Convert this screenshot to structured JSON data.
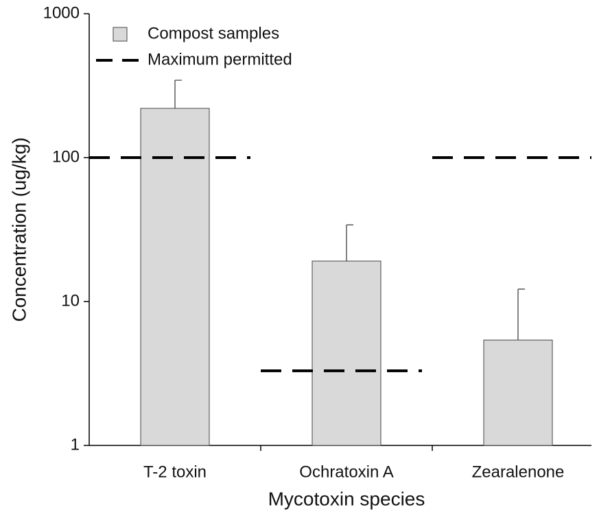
{
  "chart_data": {
    "type": "bar",
    "xlabel": "Mycotoxin species",
    "ylabel": "Concentration (ug/kg)",
    "categories": [
      "T-2 toxin",
      "Ochratoxin A",
      "Zearalenone"
    ],
    "series": [
      {
        "name": "Compost samples",
        "type": "bar",
        "color": "#d9d9d9",
        "values": [
          220,
          19.1,
          5.4
        ],
        "errors": [
          125,
          15,
          6.8
        ]
      },
      {
        "name": "Maximum permitted",
        "type": "dashed-line",
        "color": "#000000",
        "values": [
          100,
          3.3,
          100
        ]
      }
    ],
    "ylim": [
      1,
      1000
    ],
    "yticks": [
      1,
      10,
      100,
      1000
    ],
    "log_y": true,
    "grid": false,
    "legend": "upper left"
  }
}
